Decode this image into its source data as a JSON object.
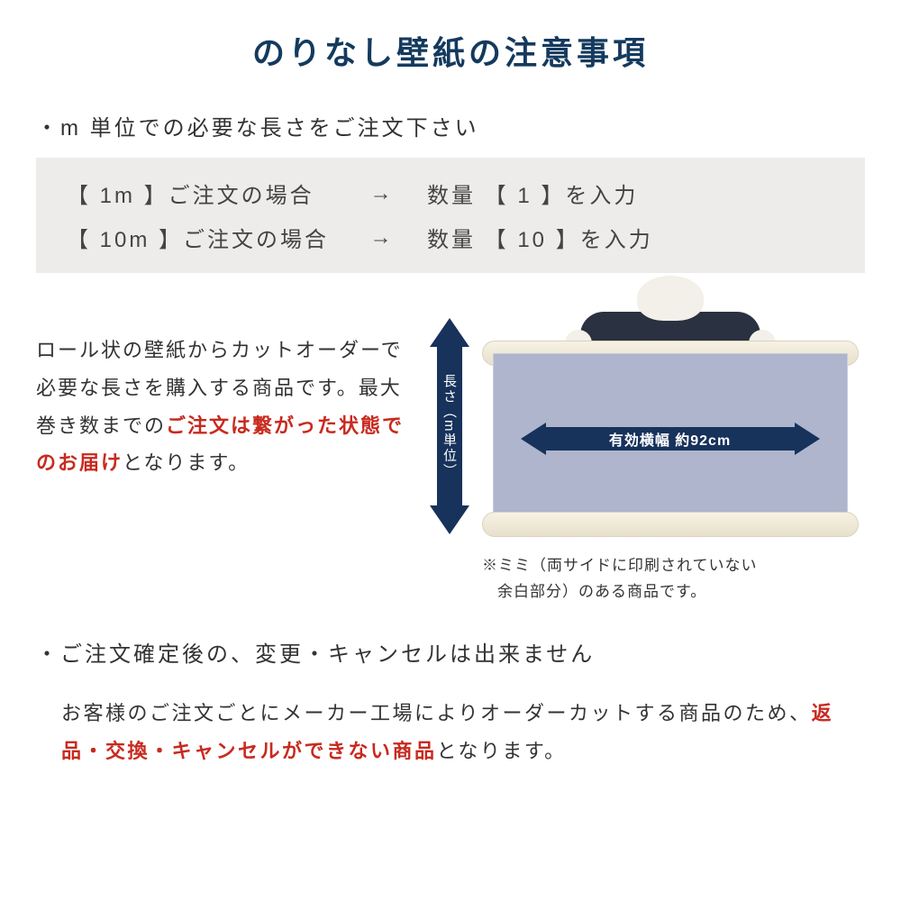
{
  "colors": {
    "title": "#143a5e",
    "text": "#333333",
    "example_bg": "#edeceb",
    "accent_red": "#c82a1f",
    "arrow_navy": "#17325b",
    "sheet": "#aeb5cc",
    "roll": "#f3edda"
  },
  "title": "のりなし壁紙の注意事項",
  "bullet1": "・m 単位での必要な長さをご注文下さい",
  "examples": {
    "row1": {
      "left": "【 1m 】ご注文の場合",
      "arrow": "→",
      "right": "数量 【 1 】を入力"
    },
    "row2": {
      "left": "【 10m 】ご注文の場合",
      "arrow": "→",
      "right": "数量 【 10 】を入力"
    }
  },
  "desc": {
    "p1a": "ロール状の壁紙からカットオーダーで必要な長さを購入する商品です。最大巻き数までの",
    "p1b": "ご注文は繋がった状態でのお届け",
    "p1c": "となります。"
  },
  "diagram": {
    "v_label": "長さ（m単位）",
    "h_label": "有効横幅 約92cm"
  },
  "note": {
    "l1": "※ミミ（両サイドに印刷されていない",
    "l2": "余白部分）のある商品です。"
  },
  "bullet2": "・ご注文確定後の、変更・キャンセルは出来ません",
  "desc2": {
    "a": "お客様のご注文ごとにメーカー工場によりオーダーカットする商品のため、",
    "b": "返品・交換・キャンセルができない商品",
    "c": "となります。"
  }
}
